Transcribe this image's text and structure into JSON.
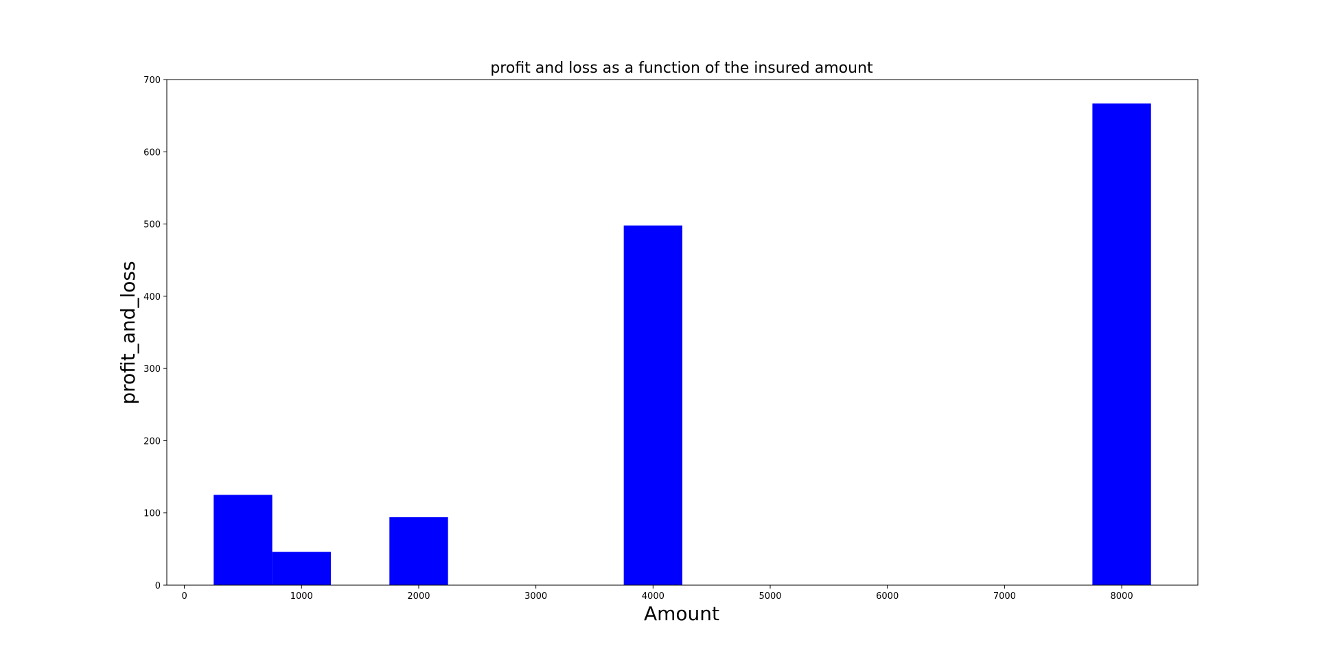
{
  "chart_data": {
    "type": "bar",
    "title": "profit and loss as a function of the insured amount",
    "xlabel": "Amount",
    "ylabel": "profit_and_loss",
    "bar_color": "#0000ff",
    "bar_width": 500,
    "bars": [
      {
        "x": 500,
        "value": 125
      },
      {
        "x": 1000,
        "value": 46
      },
      {
        "x": 2000,
        "value": 94
      },
      {
        "x": 4000,
        "value": 498
      },
      {
        "x": 8000,
        "value": 667
      }
    ],
    "xlim": [
      -150,
      8650
    ],
    "ylim": [
      0,
      700
    ],
    "xticks": [
      0,
      1000,
      2000,
      3000,
      4000,
      5000,
      6000,
      7000,
      8000
    ],
    "yticks": [
      0,
      100,
      200,
      300,
      400,
      500,
      600,
      700
    ],
    "xtick_labels": [
      "0",
      "1000",
      "2000",
      "3000",
      "4000",
      "5000",
      "6000",
      "7000",
      "8000"
    ],
    "ytick_labels": [
      "0",
      "100",
      "200",
      "300",
      "400",
      "500",
      "600",
      "700"
    ],
    "grid": false,
    "legend": "none"
  }
}
